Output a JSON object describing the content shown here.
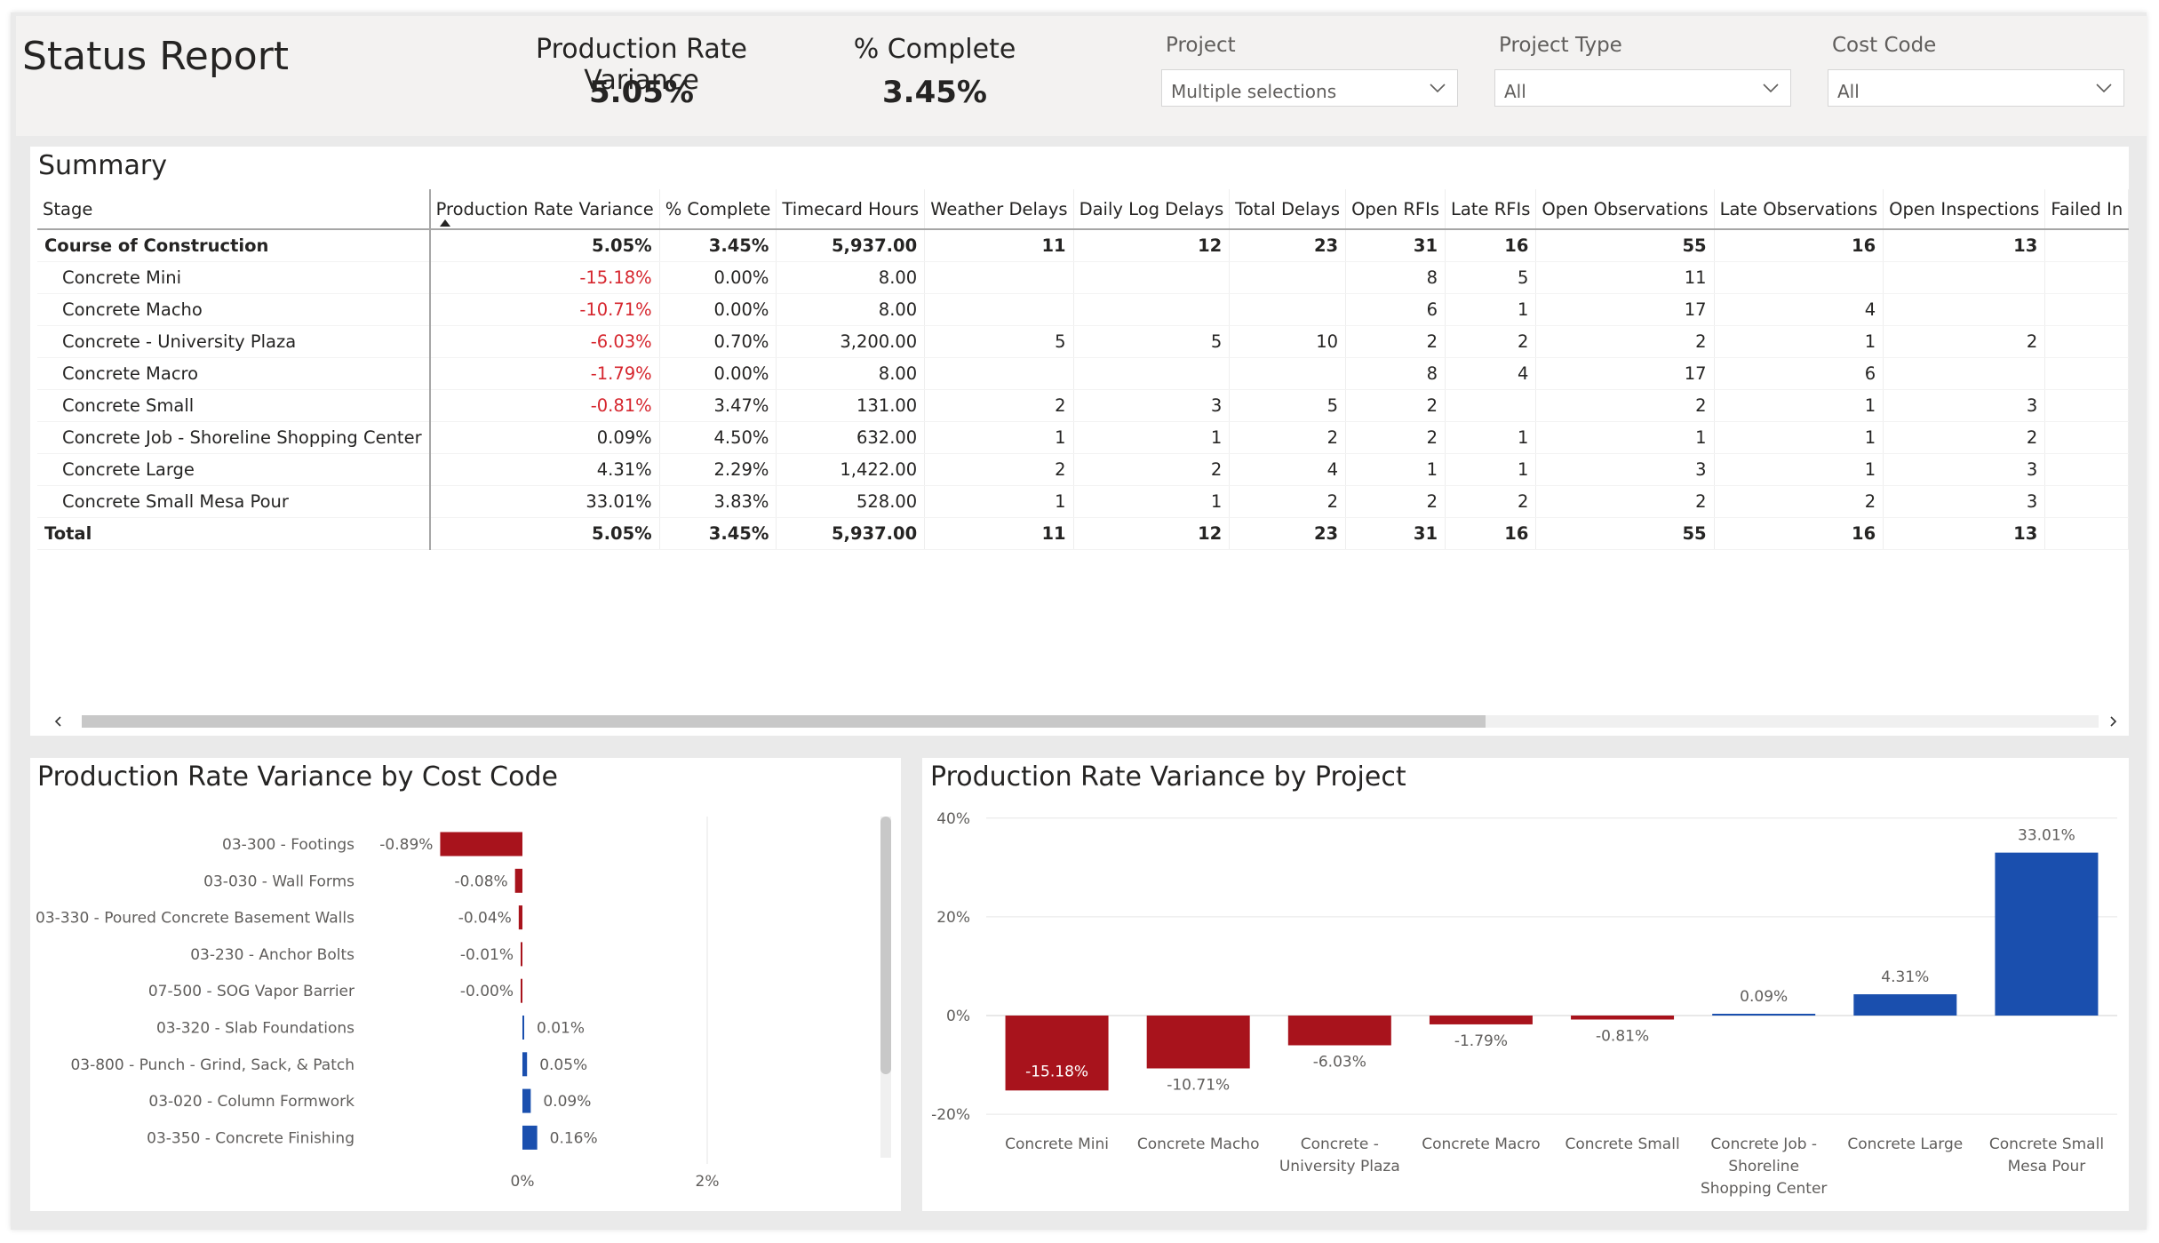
{
  "header": {
    "title": "Status Report",
    "kpis": [
      {
        "label": "Production Rate Variance",
        "value": "5.05%"
      },
      {
        "label": "% Complete",
        "value": "3.45%"
      }
    ],
    "slicers": [
      {
        "label": "Project",
        "value": "Multiple selections"
      },
      {
        "label": "Project Type",
        "value": "All"
      },
      {
        "label": "Cost Code",
        "value": "All"
      }
    ]
  },
  "summary": {
    "title": "Summary",
    "columns": [
      "Stage",
      "Production Rate Variance",
      "% Complete",
      "Timecard Hours",
      "Weather Delays",
      "Daily Log Delays",
      "Total Delays",
      "Open RFIs",
      "Late RFIs",
      "Open Observations",
      "Late Observations",
      "Open Inspections",
      "Failed In"
    ],
    "rows": [
      {
        "stage": "Course of Construction",
        "cells": [
          "5.05%",
          "3.45%",
          "5,937.00",
          "11",
          "12",
          "23",
          "31",
          "16",
          "55",
          "16",
          "13",
          ""
        ]
      },
      {
        "stage": "Concrete Mini",
        "cells": [
          "-15.18%",
          "0.00%",
          "8.00",
          "",
          "",
          "",
          "8",
          "5",
          "11",
          "",
          "",
          ""
        ]
      },
      {
        "stage": "Concrete Macho",
        "cells": [
          "-10.71%",
          "0.00%",
          "8.00",
          "",
          "",
          "",
          "6",
          "1",
          "17",
          "4",
          "",
          ""
        ]
      },
      {
        "stage": "Concrete - University Plaza",
        "cells": [
          "-6.03%",
          "0.70%",
          "3,200.00",
          "5",
          "5",
          "10",
          "2",
          "2",
          "2",
          "1",
          "2",
          ""
        ]
      },
      {
        "stage": "Concrete Macro",
        "cells": [
          "-1.79%",
          "0.00%",
          "8.00",
          "",
          "",
          "",
          "8",
          "4",
          "17",
          "6",
          "",
          ""
        ]
      },
      {
        "stage": "Concrete Small",
        "cells": [
          "-0.81%",
          "3.47%",
          "131.00",
          "2",
          "3",
          "5",
          "2",
          "",
          "2",
          "1",
          "3",
          ""
        ]
      },
      {
        "stage": "Concrete Job - Shoreline Shopping Center",
        "cells": [
          "0.09%",
          "4.50%",
          "632.00",
          "1",
          "1",
          "2",
          "2",
          "1",
          "1",
          "1",
          "2",
          ""
        ]
      },
      {
        "stage": "Concrete Large",
        "cells": [
          "4.31%",
          "2.29%",
          "1,422.00",
          "2",
          "2",
          "4",
          "1",
          "1",
          "3",
          "1",
          "3",
          ""
        ]
      },
      {
        "stage": "Concrete Small Mesa Pour",
        "cells": [
          "33.01%",
          "3.83%",
          "528.00",
          "1",
          "1",
          "2",
          "2",
          "2",
          "2",
          "2",
          "3",
          ""
        ]
      },
      {
        "stage": "Total",
        "cells": [
          "5.05%",
          "3.45%",
          "5,937.00",
          "11",
          "12",
          "23",
          "31",
          "16",
          "55",
          "16",
          "13",
          ""
        ]
      }
    ],
    "scroll_left_icon": "chevron-left-icon",
    "scroll_right_icon": "chevron-right-icon"
  },
  "chart_data": [
    {
      "type": "bar",
      "orientation": "horizontal",
      "title": "Production Rate Variance by Cost Code",
      "categories": [
        "03-300 - Footings",
        "03-030 - Wall Forms",
        "03-330 - Poured Concrete Basement Walls",
        "03-230 - Anchor Bolts",
        "07-500 - SOG Vapor Barrier",
        "03-320 - Slab Foundations",
        "03-800 - Punch - Grind, Sack, & Patch",
        "03-020 - Column Formwork",
        "03-350 - Concrete Finishing"
      ],
      "values": [
        -0.89,
        -0.08,
        -0.04,
        -0.01,
        -0.001,
        0.01,
        0.05,
        0.09,
        0.16
      ],
      "data_labels": [
        "-0.89%",
        "-0.08%",
        "-0.04%",
        "-0.01%",
        "-0.00%",
        "0.01%",
        "0.05%",
        "0.09%",
        "0.16%"
      ],
      "xticks": [
        "0%",
        "2%"
      ],
      "xtick_values": [
        0,
        2
      ],
      "colors": {
        "negative": "#a8131c",
        "positive": "#1a4fae"
      }
    },
    {
      "type": "bar",
      "title": "Production Rate Variance by Project",
      "categories": [
        "Concrete Mini",
        "Concrete Macho",
        "Concrete - University Plaza",
        "Concrete Macro",
        "Concrete Small",
        "Concrete Job - Shoreline Shopping Center",
        "Concrete Large",
        "Concrete Small Mesa Pour"
      ],
      "category_lines": [
        [
          "Concrete Mini"
        ],
        [
          "Concrete Macho"
        ],
        [
          "Concrete -",
          "University Plaza"
        ],
        [
          "Concrete Macro"
        ],
        [
          "Concrete Small"
        ],
        [
          "Concrete Job -",
          "Shoreline",
          "Shopping Center"
        ],
        [
          "Concrete Large"
        ],
        [
          "Concrete Small",
          "Mesa Pour"
        ]
      ],
      "values": [
        -15.18,
        -10.71,
        -6.03,
        -1.79,
        -0.81,
        0.09,
        4.31,
        33.01
      ],
      "data_labels": [
        "-15.18%",
        "-10.71%",
        "-6.03%",
        "-1.79%",
        "-0.81%",
        "0.09%",
        "4.31%",
        "33.01%"
      ],
      "yticks": [
        "40%",
        "20%",
        "0%",
        "-20%"
      ],
      "ytick_values": [
        40,
        20,
        0,
        -20
      ],
      "ylim": [
        -20,
        40
      ],
      "grid": true,
      "colors": {
        "negative": "#a8131c",
        "positive": "#1a4fae"
      }
    }
  ]
}
